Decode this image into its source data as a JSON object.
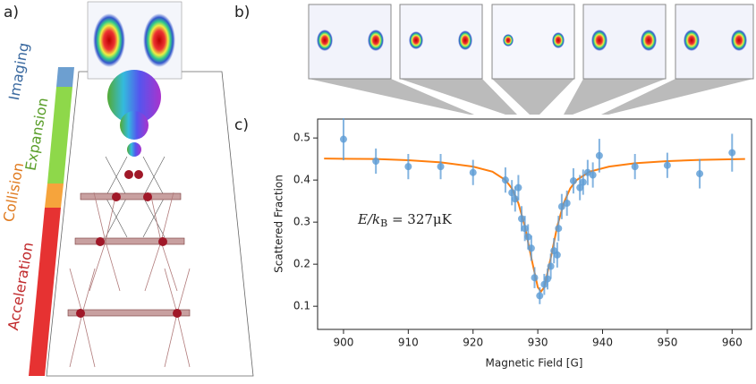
{
  "figure": {
    "panel_labels": [
      "a)",
      "b)",
      "c)"
    ],
    "stages": [
      "Imaging",
      "Expansion",
      "Collision",
      "Acceleration"
    ]
  },
  "chart_data": {
    "type": "scatter",
    "x_label": "Magnetic Field [G]",
    "y_label": "Scattered Fraction",
    "annotation": {
      "main": "E/k",
      "sub": "B",
      "rest": " = 327μK"
    },
    "x": [
      900,
      905,
      910,
      915,
      920,
      925,
      926,
      926.5,
      927,
      927.5,
      928,
      928.5,
      929,
      929.5,
      930.3,
      931,
      931.5,
      932,
      932.5,
      933,
      933.2,
      933.7,
      934.5,
      935.5,
      936.5,
      937,
      937.7,
      938.5,
      939.5,
      945,
      950,
      955,
      960
    ],
    "values": [
      0.497,
      0.445,
      0.432,
      0.432,
      0.418,
      0.4,
      0.37,
      0.355,
      0.382,
      0.308,
      0.285,
      0.265,
      0.238,
      0.168,
      0.125,
      0.152,
      0.165,
      0.195,
      0.232,
      0.222,
      0.285,
      0.337,
      0.345,
      0.398,
      0.382,
      0.395,
      0.418,
      0.412,
      0.458,
      0.432,
      0.435,
      0.415,
      0.465
    ],
    "errors": [
      0.05,
      0.03,
      0.03,
      0.03,
      0.03,
      0.03,
      0.03,
      0.03,
      0.03,
      0.03,
      0.03,
      0.03,
      0.03,
      0.025,
      0.02,
      0.025,
      0.025,
      0.03,
      0.03,
      0.03,
      0.03,
      0.03,
      0.03,
      0.03,
      0.03,
      0.03,
      0.03,
      0.03,
      0.04,
      0.03,
      0.03,
      0.035,
      0.045
    ],
    "color": "#5b9bd5",
    "fit": {
      "x": [
        897,
        905,
        910,
        915,
        920,
        923,
        925,
        926,
        927,
        928,
        929,
        930,
        930.5,
        931,
        932,
        933,
        934,
        935,
        936,
        938,
        941,
        945,
        950,
        955,
        962
      ],
      "values": [
        0.451,
        0.45,
        0.447,
        0.442,
        0.432,
        0.42,
        0.4,
        0.38,
        0.345,
        0.29,
        0.215,
        0.145,
        0.135,
        0.145,
        0.215,
        0.29,
        0.345,
        0.38,
        0.4,
        0.42,
        0.432,
        0.44,
        0.445,
        0.448,
        0.45
      ],
      "color": "#ff7f0e"
    },
    "xlim": [
      896,
      963
    ],
    "ylim": [
      0.045,
      0.545
    ],
    "xticks": [
      900,
      910,
      920,
      930,
      940,
      950,
      960
    ],
    "yticks": [
      0.1,
      0.2,
      0.3,
      0.4,
      0.5
    ]
  }
}
